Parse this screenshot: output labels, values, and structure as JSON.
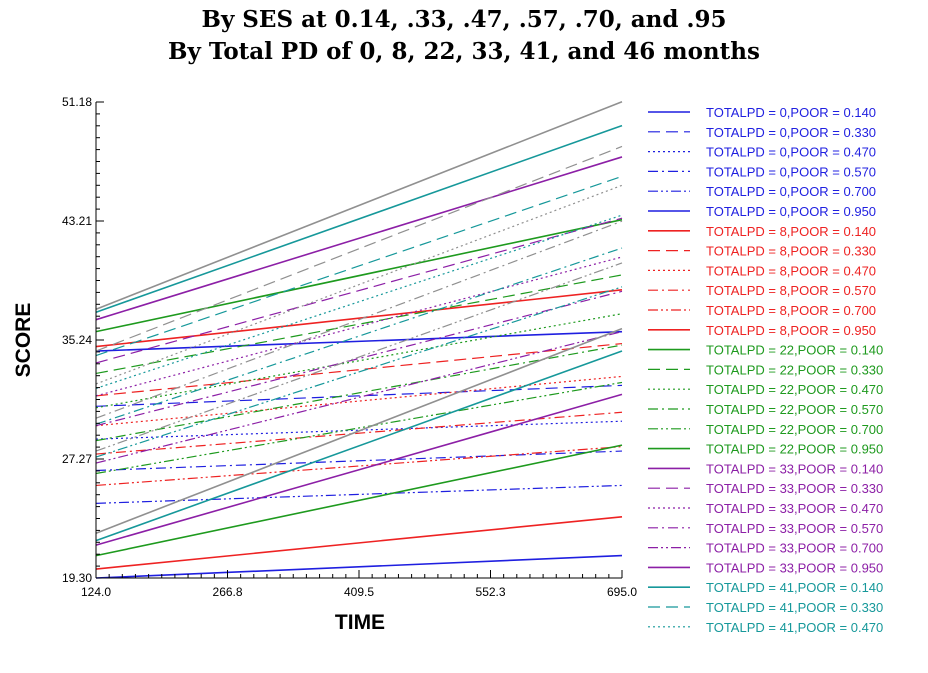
{
  "chart_data": {
    "type": "line",
    "title": "By SES at 0.14, .33, .47, .57, .70, and .95",
    "subtitle": "By Total PD of 0, 8, 22, 33, 41, and 46 months",
    "xlabel": "TIME",
    "ylabel": "SCORE",
    "xlim": [
      124.0,
      695.0
    ],
    "ylim": [
      19.3,
      51.18
    ],
    "xticks": [
      "124.0",
      "266.8",
      "409.5",
      "552.3",
      "695.0"
    ],
    "yticks": [
      "19.30",
      "27.27",
      "35.24",
      "43.21",
      "51.18"
    ],
    "legend_position": "right",
    "colors": {
      "0": "#1f1fe0",
      "8": "#ee2222",
      "22": "#1e9a1e",
      "33": "#8c1fa6",
      "41": "#16989a",
      "46": "#909090"
    },
    "series": [
      {
        "name": "TOTALPD = 0,POOR = 0.140",
        "pd": "0",
        "dash": "solid",
        "x": [
          124.0,
          695.0
        ],
        "y": [
          34.5,
          35.8
        ]
      },
      {
        "name": "TOTALPD = 0,POOR = 0.330",
        "pd": "0",
        "dash": "dash",
        "x": [
          124.0,
          695.0
        ],
        "y": [
          30.8,
          32.2
        ]
      },
      {
        "name": "TOTALPD = 0,POOR = 0.470",
        "pd": "0",
        "dash": "dot",
        "x": [
          124.0,
          695.0
        ],
        "y": [
          28.6,
          29.8
        ]
      },
      {
        "name": "TOTALPD = 0,POOR = 0.570",
        "pd": "0",
        "dash": "dashdot",
        "x": [
          124.0,
          695.0
        ],
        "y": [
          26.5,
          27.8
        ]
      },
      {
        "name": "TOTALPD = 0,POOR = 0.700",
        "pd": "0",
        "dash": "dashdotdot",
        "x": [
          124.0,
          695.0
        ],
        "y": [
          24.3,
          25.5
        ]
      },
      {
        "name": "TOTALPD = 0,POOR = 0.950",
        "pd": "0",
        "dash": "solid",
        "x": [
          124.0,
          695.0
        ],
        "y": [
          19.3,
          20.8
        ]
      },
      {
        "name": "TOTALPD = 8,POOR = 0.140",
        "pd": "8",
        "dash": "solid",
        "x": [
          124.0,
          695.0
        ],
        "y": [
          34.8,
          38.6
        ]
      },
      {
        "name": "TOTALPD = 8,POOR = 0.330",
        "pd": "8",
        "dash": "dash",
        "x": [
          124.0,
          695.0
        ],
        "y": [
          31.5,
          35.0
        ]
      },
      {
        "name": "TOTALPD = 8,POOR = 0.470",
        "pd": "8",
        "dash": "dot",
        "x": [
          124.0,
          695.0
        ],
        "y": [
          29.5,
          32.8
        ]
      },
      {
        "name": "TOTALPD = 8,POOR = 0.570",
        "pd": "8",
        "dash": "dashdot",
        "x": [
          124.0,
          695.0
        ],
        "y": [
          27.6,
          30.4
        ]
      },
      {
        "name": "TOTALPD = 8,POOR = 0.700",
        "pd": "8",
        "dash": "dashdotdot",
        "x": [
          124.0,
          695.0
        ],
        "y": [
          25.5,
          28.1
        ]
      },
      {
        "name": "TOTALPD = 8,POOR = 0.950",
        "pd": "8",
        "dash": "solid",
        "x": [
          124.0,
          695.0
        ],
        "y": [
          19.9,
          23.4
        ]
      },
      {
        "name": "TOTALPD = 22,POOR = 0.140",
        "pd": "22",
        "dash": "solid",
        "x": [
          124.0,
          695.0
        ],
        "y": [
          35.8,
          43.3
        ]
      },
      {
        "name": "TOTALPD = 22,POOR = 0.330",
        "pd": "22",
        "dash": "dash",
        "x": [
          124.0,
          695.0
        ],
        "y": [
          33.0,
          39.6
        ]
      },
      {
        "name": "TOTALPD = 22,POOR = 0.470",
        "pd": "22",
        "dash": "dot",
        "x": [
          124.0,
          695.0
        ],
        "y": [
          30.7,
          37.0
        ]
      },
      {
        "name": "TOTALPD = 22,POOR = 0.570",
        "pd": "22",
        "dash": "dashdot",
        "x": [
          124.0,
          695.0
        ],
        "y": [
          28.5,
          34.9
        ]
      },
      {
        "name": "TOTALPD = 22,POOR = 0.700",
        "pd": "22",
        "dash": "dashdotdot",
        "x": [
          124.0,
          695.0
        ],
        "y": [
          26.3,
          32.4
        ]
      },
      {
        "name": "TOTALPD = 22,POOR = 0.950",
        "pd": "22",
        "dash": "solid",
        "x": [
          124.0,
          695.0
        ],
        "y": [
          20.8,
          28.2
        ]
      },
      {
        "name": "TOTALPD = 33,POOR = 0.140",
        "pd": "33",
        "dash": "solid",
        "x": [
          124.0,
          695.0
        ],
        "y": [
          36.6,
          47.5
        ]
      },
      {
        "name": "TOTALPD = 33,POOR = 0.330",
        "pd": "33",
        "dash": "dash",
        "x": [
          124.0,
          695.0
        ],
        "y": [
          33.7,
          43.4
        ]
      },
      {
        "name": "TOTALPD = 33,POOR = 0.470",
        "pd": "33",
        "dash": "dot",
        "x": [
          124.0,
          695.0
        ],
        "y": [
          31.5,
          40.8
        ]
      },
      {
        "name": "TOTALPD = 33,POOR = 0.570",
        "pd": "33",
        "dash": "dashdot",
        "x": [
          124.0,
          695.0
        ],
        "y": [
          29.5,
          38.5
        ]
      },
      {
        "name": "TOTALPD = 33,POOR = 0.700",
        "pd": "33",
        "dash": "dashdotdot",
        "x": [
          124.0,
          695.0
        ],
        "y": [
          27.0,
          35.8
        ]
      },
      {
        "name": "TOTALPD = 33,POOR = 0.950",
        "pd": "33",
        "dash": "solid",
        "x": [
          124.0,
          695.0
        ],
        "y": [
          21.5,
          31.6
        ]
      },
      {
        "name": "TOTALPD = 41,POOR = 0.140",
        "pd": "41",
        "dash": "solid",
        "x": [
          124.0,
          695.0
        ],
        "y": [
          37.1,
          49.6
        ]
      },
      {
        "name": "TOTALPD = 41,POOR = 0.330",
        "pd": "41",
        "dash": "dash",
        "x": [
          124.0,
          695.0
        ],
        "y": [
          34.2,
          46.2
        ]
      },
      {
        "name": "TOTALPD = 41,POOR = 0.470",
        "pd": "41",
        "dash": "dot",
        "x": [
          124.0,
          695.0
        ],
        "y": [
          32.0,
          43.6
        ]
      },
      {
        "name": "",
        "pd": "41",
        "dash": "dashdot",
        "x": [
          124.0,
          695.0
        ],
        "y": [
          29.6,
          41.4
        ]
      },
      {
        "name": "",
        "pd": "41",
        "dash": "dashdotdot",
        "x": [
          124.0,
          695.0
        ],
        "y": [
          27.4,
          38.8
        ]
      },
      {
        "name": "",
        "pd": "41",
        "dash": "solid",
        "x": [
          124.0,
          695.0
        ],
        "y": [
          21.8,
          34.5
        ]
      },
      {
        "name": "",
        "pd": "46",
        "dash": "solid",
        "x": [
          124.0,
          695.0
        ],
        "y": [
          37.3,
          51.2
        ]
      },
      {
        "name": "",
        "pd": "46",
        "dash": "dash",
        "x": [
          124.0,
          695.0
        ],
        "y": [
          34.5,
          48.2
        ]
      },
      {
        "name": "",
        "pd": "46",
        "dash": "dot",
        "x": [
          124.0,
          695.0
        ],
        "y": [
          32.3,
          45.6
        ]
      },
      {
        "name": "",
        "pd": "46",
        "dash": "dashdot",
        "x": [
          124.0,
          695.0
        ],
        "y": [
          30.0,
          43.2
        ]
      },
      {
        "name": "",
        "pd": "46",
        "dash": "dashdotdot",
        "x": [
          124.0,
          695.0
        ],
        "y": [
          27.8,
          40.4
        ]
      },
      {
        "name": "",
        "pd": "46",
        "dash": "solid",
        "x": [
          124.0,
          695.0
        ],
        "y": [
          22.3,
          36.0
        ]
      }
    ]
  }
}
